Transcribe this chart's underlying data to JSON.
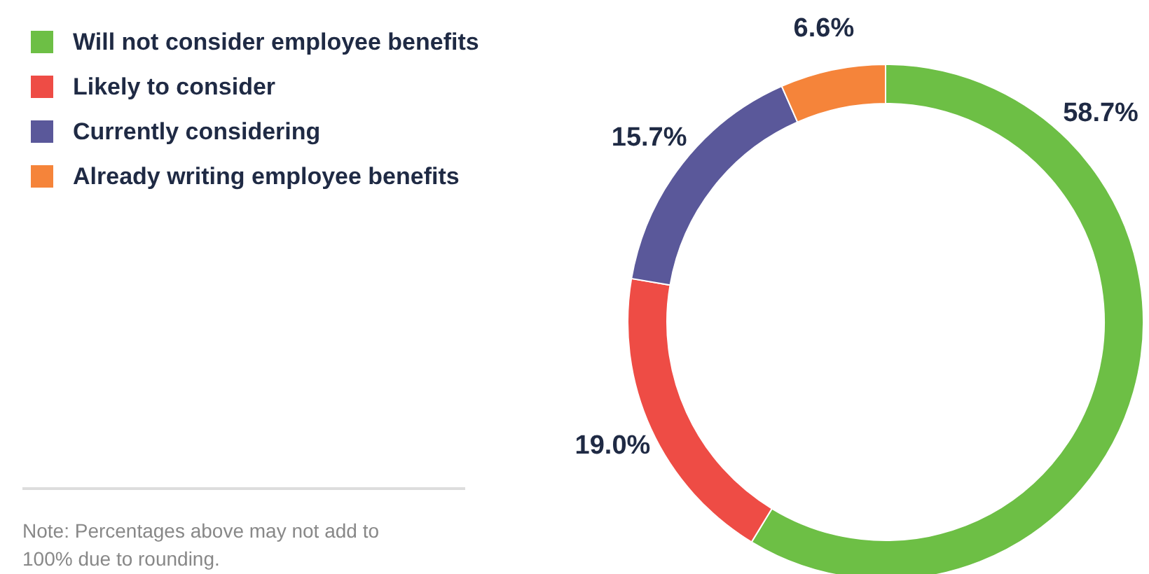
{
  "chart_data": {
    "type": "donut",
    "categories": [
      "Will not consider employee benefits",
      "Likely to consider",
      "Currently considering",
      "Already writing employee benefits"
    ],
    "values": [
      58.7,
      19.0,
      15.7,
      6.6
    ],
    "colors": [
      "#6dbf45",
      "#ee4c45",
      "#5a589a",
      "#f5843a"
    ],
    "value_labels": [
      "58.7%",
      "19.0%",
      "15.7%",
      "6.6%"
    ],
    "legend": "top left",
    "annotations": [
      "Note: Percentages above may not add to 100% due to rounding."
    ]
  }
}
